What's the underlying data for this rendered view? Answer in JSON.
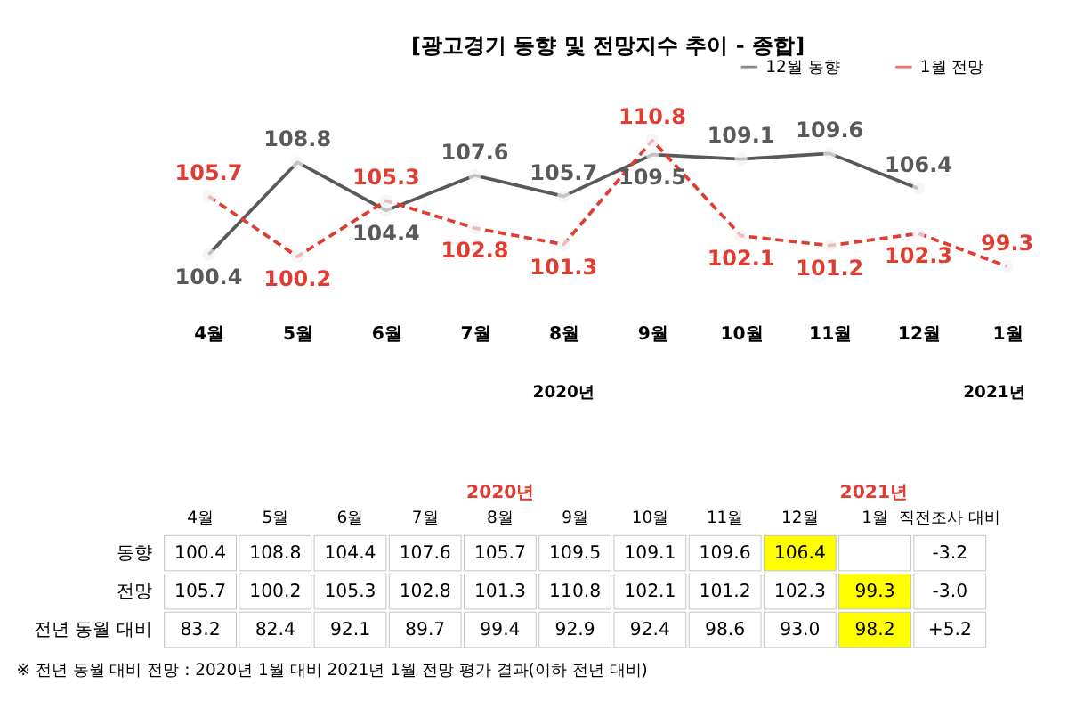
{
  "chart_data": [
    {
      "type": "line",
      "title": "[광고경기 동향 및 전망지수 추이 - 종합]",
      "categories": [
        "4월",
        "5월",
        "6월",
        "7월",
        "8월",
        "9월",
        "10월",
        "11월",
        "12월",
        "1월"
      ],
      "series": [
        {
          "name": "12월 동향",
          "color": "#595959",
          "line_style": "solid",
          "values": [
            100.4,
            108.8,
            104.4,
            107.6,
            105.7,
            109.5,
            109.1,
            109.6,
            106.4,
            null
          ]
        },
        {
          "name": "1월 전망",
          "color": "#e03c31",
          "line_style": "dashed",
          "values": [
            105.7,
            100.2,
            105.3,
            102.8,
            101.3,
            110.8,
            102.1,
            101.2,
            102.3,
            99.3
          ]
        }
      ],
      "tick_labels": "x",
      "marker": "circle",
      "legend": "top right",
      "grid": false,
      "data_labels": true,
      "annotations": [
        "2020년",
        "2021년"
      ]
    },
    {
      "type": "heatmap",
      "categories": [
        "4월",
        "5월",
        "6월",
        "7월",
        "8월",
        "9월",
        "10월",
        "11월",
        "12월",
        "1월",
        "직전조사 대비"
      ],
      "y_categories": [
        "동향",
        "전망",
        "전년 동월 대비"
      ],
      "cells": [
        [
          100.4,
          108.8,
          104.4,
          107.6,
          105.7,
          109.5,
          109.1,
          109.6,
          106.4,
          null,
          -3.2
        ],
        [
          105.7,
          100.2,
          105.3,
          102.8,
          101.3,
          110.8,
          102.1,
          101.2,
          102.3,
          99.3,
          -3.0
        ],
        [
          83.2,
          82.4,
          92.1,
          89.7,
          99.4,
          92.9,
          92.4,
          98.6,
          93.0,
          98.2,
          5.2
        ]
      ],
      "cell_labels": [
        [
          "100.4",
          "108.8",
          "104.4",
          "107.6",
          "105.7",
          "109.5",
          "109.1",
          "109.6",
          "106.4",
          null,
          "-3.2"
        ],
        [
          "105.7",
          "100.2",
          "105.3",
          "102.8",
          "101.3",
          "110.8",
          "102.1",
          "101.2",
          "102.3",
          "99.3",
          "-3.0"
        ],
        [
          "83.2",
          "82.4",
          "92.1",
          "89.7",
          "99.4",
          "92.9",
          "92.4",
          "98.6",
          "93.0",
          "98.2",
          "+5.2"
        ]
      ],
      "colors": [
        [
          "#ffffff",
          "#ffffff",
          "#ffffff",
          "#ffffff",
          "#ffffff",
          "#ffffff",
          "#ffffff",
          "#ffffff",
          "#ffff00",
          "#ffffff",
          "#ffffff"
        ],
        [
          "#ffffff",
          "#ffffff",
          "#ffffff",
          "#ffffff",
          "#ffffff",
          "#ffffff",
          "#ffffff",
          "#ffffff",
          "#ffffff",
          "#ffff00",
          "#ffffff"
        ],
        [
          "#ffffff",
          "#ffffff",
          "#ffffff",
          "#ffffff",
          "#ffffff",
          "#ffffff",
          "#ffffff",
          "#ffffff",
          "#ffffff",
          "#ffff00",
          "#ffffff"
        ]
      ],
      "annotations": [
        "2020년",
        "2021년",
        "※ 전년 동월 대비 전망 : 2020년 1월 대비 2021년 1월 전망 평가 결과(이하 전년 대비)"
      ]
    }
  ]
}
